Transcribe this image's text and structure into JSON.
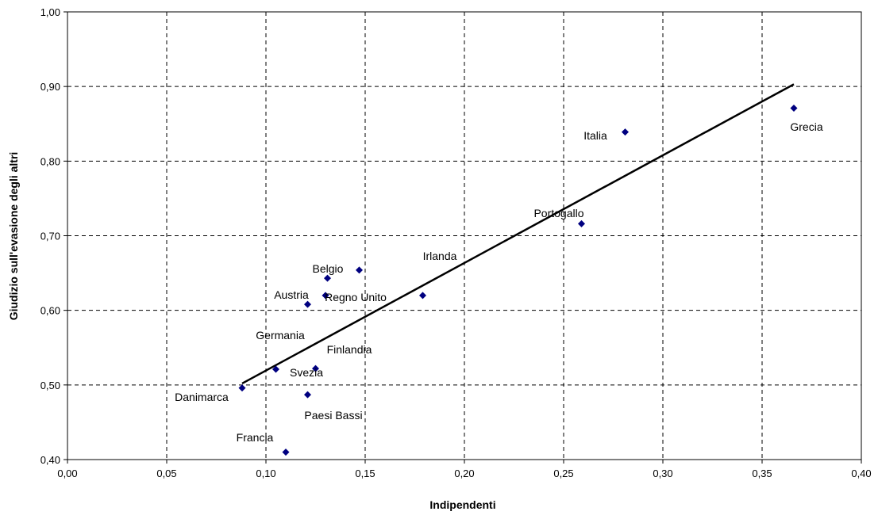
{
  "chart_data": {
    "type": "scatter",
    "xlabel": "Indipendenti",
    "ylabel": "Giudizio sull'evasione degli altri",
    "xlim": [
      0.0,
      0.4
    ],
    "ylim": [
      0.4,
      1.0
    ],
    "x_ticks": [
      "0,00",
      "0,05",
      "0,10",
      "0,15",
      "0,20",
      "0,25",
      "0,30",
      "0,35",
      "0,40"
    ],
    "y_ticks": [
      "0,40",
      "0,50",
      "0,60",
      "0,70",
      "0,80",
      "0,90",
      "1,00"
    ],
    "grid": true,
    "legend": "none",
    "marker_color": "#000080",
    "line_color": "#000000",
    "points": [
      {
        "x": 0.366,
        "y": 0.871
      },
      {
        "x": 0.281,
        "y": 0.839
      },
      {
        "x": 0.259,
        "y": 0.716
      },
      {
        "x": 0.179,
        "y": 0.62
      },
      {
        "x": 0.147,
        "y": 0.654
      },
      {
        "x": 0.131,
        "y": 0.643
      },
      {
        "x": 0.13,
        "y": 0.62
      },
      {
        "x": 0.121,
        "y": 0.608
      },
      {
        "x": 0.105,
        "y": 0.521
      },
      {
        "x": 0.125,
        "y": 0.522
      },
      {
        "x": 0.121,
        "y": 0.487
      },
      {
        "x": 0.088,
        "y": 0.496
      },
      {
        "x": 0.11,
        "y": 0.41
      }
    ],
    "annotations": [
      "Grecia",
      "Italia",
      "Portogallo",
      "Irlanda",
      "Belgio",
      "Austria",
      "Regno Unito",
      "Germania",
      "Finlandia",
      "Svezia",
      "Danimarca",
      "Paesi Bassi",
      "Francia"
    ],
    "trendline": {
      "x": [
        0.088,
        0.366
      ],
      "y": [
        0.502,
        0.903
      ]
    }
  }
}
